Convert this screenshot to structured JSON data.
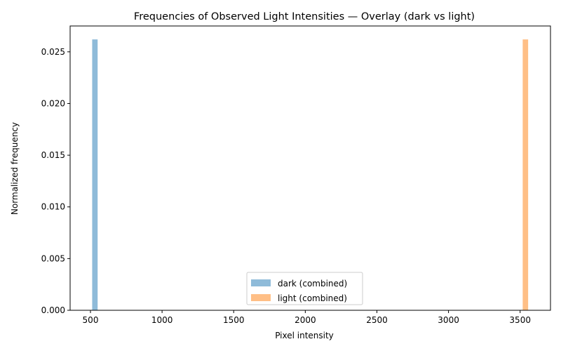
{
  "chart_data": {
    "type": "bar",
    "title": "Frequencies of Observed Light Intensities — Overlay (dark vs light)",
    "xlabel": "Pixel intensity",
    "ylabel": "Normalized frequency",
    "xlim": [
      358,
      3712
    ],
    "ylim": [
      0,
      0.0275
    ],
    "xticks": [
      500,
      1000,
      1500,
      2000,
      2500,
      3000,
      3500
    ],
    "xtick_labels": [
      "500",
      "1000",
      "1500",
      "2000",
      "2500",
      "3000",
      "3500"
    ],
    "yticks": [
      0,
      0.005,
      0.01,
      0.015,
      0.02,
      0.025
    ],
    "ytick_labels": [
      "0.000",
      "0.005",
      "0.010",
      "0.015",
      "0.020",
      "0.025"
    ],
    "grid": false,
    "legend_position": "lower-center",
    "series": [
      {
        "name": "dark (combined)",
        "color": "#1f77b4",
        "opacity": 0.5,
        "bins": [
          {
            "x0": 512,
            "x1": 550,
            "value": 0.0262
          }
        ]
      },
      {
        "name": "light (combined)",
        "color": "#ff7f0e",
        "opacity": 0.5,
        "bins": [
          {
            "x0": 3518,
            "x1": 3556,
            "value": 0.0262
          }
        ]
      }
    ]
  }
}
